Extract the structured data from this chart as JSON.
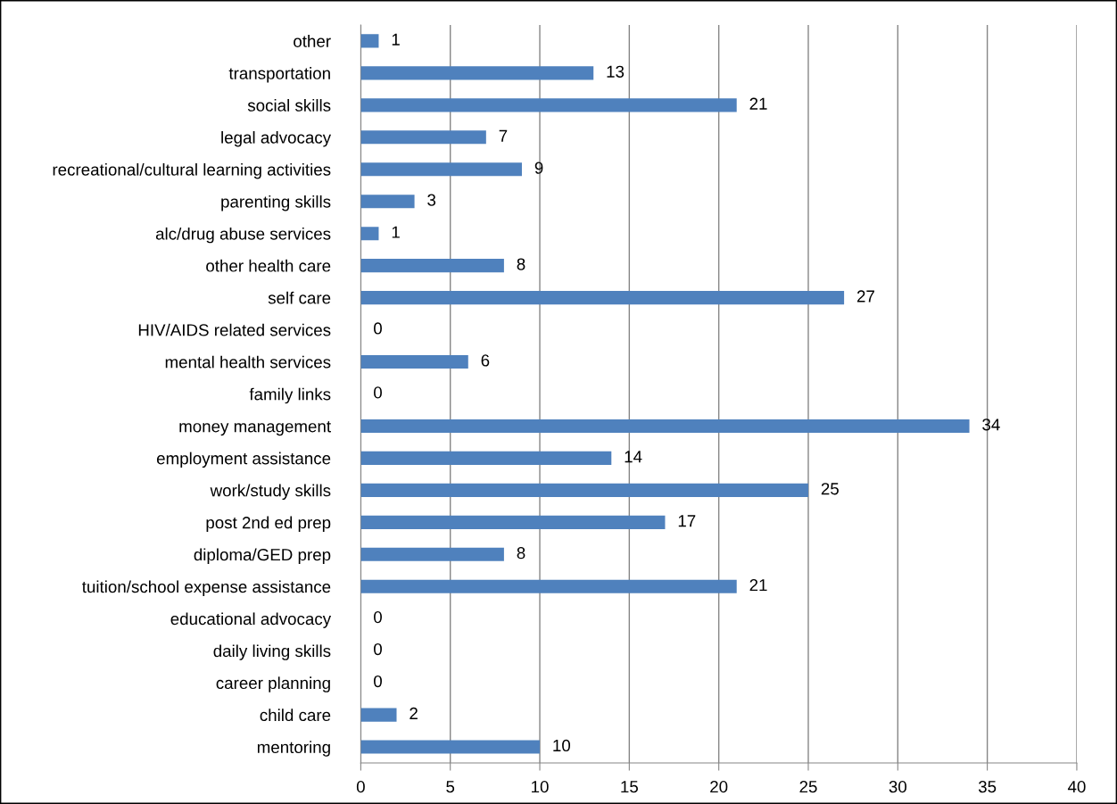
{
  "chart_data": {
    "type": "bar",
    "orientation": "horizontal",
    "categories": [
      "other",
      "transportation",
      "social skills",
      "legal advocacy",
      "recreational/cultural learning activities",
      "parenting skills",
      "alc/drug abuse services",
      "other health care",
      "self care",
      "HIV/AIDS related services",
      "mental health services",
      "family links",
      "money management",
      "employment assistance",
      "work/study skills",
      "post 2nd ed prep",
      "diploma/GED prep",
      "tuition/school expense assistance",
      "educational advocacy",
      "daily living skills",
      "career planning",
      "child care",
      "mentoring"
    ],
    "values": [
      1,
      13,
      21,
      7,
      9,
      3,
      1,
      8,
      27,
      0,
      6,
      0,
      34,
      14,
      25,
      17,
      8,
      21,
      0,
      0,
      0,
      2,
      10
    ],
    "color": "#4f81bd",
    "xlim": [
      0,
      40
    ],
    "xticks": [
      0,
      5,
      10,
      15,
      20,
      25,
      30,
      35,
      40
    ],
    "grid": "x",
    "data_labels": true,
    "legend": false
  }
}
